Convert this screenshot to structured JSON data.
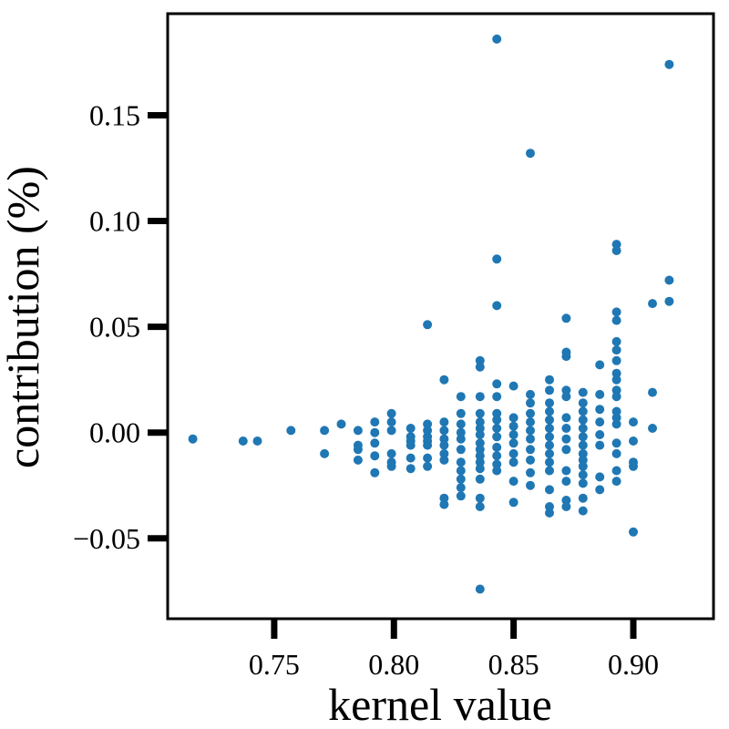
{
  "chart_data": {
    "type": "scatter",
    "title": "",
    "xlabel": "kernel value",
    "ylabel": "contribution (%)",
    "xlim": [
      0.7055,
      0.9335
    ],
    "ylim": [
      -0.088,
      0.198
    ],
    "xticks": [
      0.75,
      0.8,
      0.85,
      0.9
    ],
    "xtick_labels": [
      "0.75",
      "0.80",
      "0.85",
      "0.90"
    ],
    "yticks": [
      -0.05,
      0.0,
      0.05,
      0.1,
      0.15
    ],
    "ytick_labels": [
      "−0.05",
      "0.00",
      "0.05",
      "0.10",
      "0.15"
    ],
    "grid": false,
    "legend": null,
    "marker_color": "#1f77b4",
    "series": [
      {
        "points": [
          [
            0.716,
            -0.003
          ],
          [
            0.737,
            -0.004
          ],
          [
            0.743,
            -0.004
          ],
          [
            0.757,
            0.001
          ],
          [
            0.771,
            0.001
          ],
          [
            0.771,
            -0.01
          ],
          [
            0.778,
            0.004
          ],
          [
            0.785,
            0.001
          ],
          [
            0.785,
            -0.006
          ],
          [
            0.785,
            -0.008
          ],
          [
            0.785,
            -0.013
          ],
          [
            0.792,
            0.005
          ],
          [
            0.792,
            0.0
          ],
          [
            0.792,
            -0.005
          ],
          [
            0.792,
            -0.011
          ],
          [
            0.792,
            -0.019
          ],
          [
            0.799,
            0.009
          ],
          [
            0.799,
            0.005
          ],
          [
            0.799,
            0.001
          ],
          [
            0.799,
            -0.01
          ],
          [
            0.799,
            -0.014
          ],
          [
            0.799,
            -0.016
          ],
          [
            0.807,
            0.002
          ],
          [
            0.807,
            -0.002
          ],
          [
            0.807,
            -0.004
          ],
          [
            0.807,
            -0.006
          ],
          [
            0.807,
            -0.012
          ],
          [
            0.807,
            -0.017
          ],
          [
            0.814,
            0.051
          ],
          [
            0.814,
            0.004
          ],
          [
            0.814,
            0.001
          ],
          [
            0.814,
            -0.002
          ],
          [
            0.814,
            -0.004
          ],
          [
            0.814,
            -0.006
          ],
          [
            0.814,
            -0.012
          ],
          [
            0.814,
            -0.016
          ],
          [
            0.821,
            0.025
          ],
          [
            0.821,
            0.005
          ],
          [
            0.821,
            0.001
          ],
          [
            0.821,
            -0.003
          ],
          [
            0.821,
            -0.006
          ],
          [
            0.821,
            -0.01
          ],
          [
            0.821,
            -0.013
          ],
          [
            0.821,
            -0.031
          ],
          [
            0.821,
            -0.034
          ],
          [
            0.828,
            0.017
          ],
          [
            0.828,
            0.009
          ],
          [
            0.828,
            0.004
          ],
          [
            0.828,
            0.0
          ],
          [
            0.828,
            -0.003
          ],
          [
            0.828,
            -0.008
          ],
          [
            0.828,
            -0.014
          ],
          [
            0.828,
            -0.018
          ],
          [
            0.828,
            -0.022
          ],
          [
            0.828,
            -0.026
          ],
          [
            0.828,
            -0.03
          ],
          [
            0.836,
            0.034
          ],
          [
            0.836,
            0.031
          ],
          [
            0.836,
            0.017
          ],
          [
            0.836,
            0.009
          ],
          [
            0.836,
            0.005
          ],
          [
            0.836,
            0.002
          ],
          [
            0.836,
            -0.001
          ],
          [
            0.836,
            -0.005
          ],
          [
            0.836,
            -0.008
          ],
          [
            0.836,
            -0.011
          ],
          [
            0.836,
            -0.014
          ],
          [
            0.836,
            -0.017
          ],
          [
            0.836,
            -0.022
          ],
          [
            0.836,
            -0.031
          ],
          [
            0.836,
            -0.035
          ],
          [
            0.836,
            -0.074
          ],
          [
            0.843,
            0.186
          ],
          [
            0.843,
            0.082
          ],
          [
            0.843,
            0.06
          ],
          [
            0.843,
            0.023
          ],
          [
            0.843,
            0.017
          ],
          [
            0.843,
            0.009
          ],
          [
            0.843,
            0.006
          ],
          [
            0.843,
            0.002
          ],
          [
            0.843,
            -0.002
          ],
          [
            0.843,
            -0.007
          ],
          [
            0.843,
            -0.011
          ],
          [
            0.843,
            -0.015
          ],
          [
            0.843,
            -0.018
          ],
          [
            0.85,
            0.022
          ],
          [
            0.85,
            0.007
          ],
          [
            0.85,
            0.003
          ],
          [
            0.85,
            -0.001
          ],
          [
            0.85,
            -0.005
          ],
          [
            0.85,
            -0.01
          ],
          [
            0.85,
            -0.014
          ],
          [
            0.85,
            -0.023
          ],
          [
            0.85,
            -0.033
          ],
          [
            0.857,
            0.132
          ],
          [
            0.857,
            0.018
          ],
          [
            0.857,
            0.014
          ],
          [
            0.857,
            0.009
          ],
          [
            0.857,
            0.005
          ],
          [
            0.857,
            0.001
          ],
          [
            0.857,
            -0.003
          ],
          [
            0.857,
            -0.008
          ],
          [
            0.857,
            -0.013
          ],
          [
            0.857,
            -0.019
          ],
          [
            0.857,
            -0.025
          ],
          [
            0.865,
            0.025
          ],
          [
            0.865,
            0.02
          ],
          [
            0.865,
            0.014
          ],
          [
            0.865,
            0.01
          ],
          [
            0.865,
            0.006
          ],
          [
            0.865,
            0.002
          ],
          [
            0.865,
            -0.002
          ],
          [
            0.865,
            -0.006
          ],
          [
            0.865,
            -0.01
          ],
          [
            0.865,
            -0.014
          ],
          [
            0.865,
            -0.018
          ],
          [
            0.865,
            -0.027
          ],
          [
            0.865,
            -0.035
          ],
          [
            0.865,
            -0.038
          ],
          [
            0.872,
            0.054
          ],
          [
            0.872,
            0.038
          ],
          [
            0.872,
            0.036
          ],
          [
            0.872,
            0.02
          ],
          [
            0.872,
            0.017
          ],
          [
            0.872,
            0.007
          ],
          [
            0.872,
            0.002
          ],
          [
            0.872,
            -0.003
          ],
          [
            0.872,
            -0.008
          ],
          [
            0.872,
            -0.018
          ],
          [
            0.872,
            -0.023
          ],
          [
            0.872,
            -0.032
          ],
          [
            0.872,
            -0.035
          ],
          [
            0.879,
            0.019
          ],
          [
            0.879,
            0.014
          ],
          [
            0.879,
            0.01
          ],
          [
            0.879,
            0.006
          ],
          [
            0.879,
            0.002
          ],
          [
            0.879,
            -0.002
          ],
          [
            0.879,
            -0.006
          ],
          [
            0.879,
            -0.01
          ],
          [
            0.879,
            -0.013
          ],
          [
            0.879,
            -0.016
          ],
          [
            0.879,
            -0.02
          ],
          [
            0.879,
            -0.024
          ],
          [
            0.879,
            -0.031
          ],
          [
            0.879,
            -0.037
          ],
          [
            0.886,
            0.032
          ],
          [
            0.886,
            0.018
          ],
          [
            0.886,
            0.011
          ],
          [
            0.886,
            0.005
          ],
          [
            0.886,
            -0.001
          ],
          [
            0.886,
            -0.006
          ],
          [
            0.886,
            -0.021
          ],
          [
            0.886,
            -0.027
          ],
          [
            0.893,
            0.089
          ],
          [
            0.893,
            0.086
          ],
          [
            0.893,
            0.057
          ],
          [
            0.893,
            0.053
          ],
          [
            0.893,
            0.043
          ],
          [
            0.893,
            0.039
          ],
          [
            0.893,
            0.034
          ],
          [
            0.893,
            0.028
          ],
          [
            0.893,
            0.025
          ],
          [
            0.893,
            0.02
          ],
          [
            0.893,
            0.017
          ],
          [
            0.893,
            0.01
          ],
          [
            0.893,
            0.007
          ],
          [
            0.893,
            0.004
          ],
          [
            0.893,
            -0.005
          ],
          [
            0.893,
            -0.01
          ],
          [
            0.893,
            -0.018
          ],
          [
            0.893,
            -0.023
          ],
          [
            0.9,
            0.005
          ],
          [
            0.9,
            -0.004
          ],
          [
            0.9,
            -0.014
          ],
          [
            0.9,
            -0.016
          ],
          [
            0.9,
            -0.047
          ],
          [
            0.908,
            0.061
          ],
          [
            0.908,
            0.019
          ],
          [
            0.908,
            0.002
          ],
          [
            0.915,
            0.174
          ],
          [
            0.915,
            0.072
          ],
          [
            0.915,
            0.062
          ]
        ]
      }
    ]
  }
}
